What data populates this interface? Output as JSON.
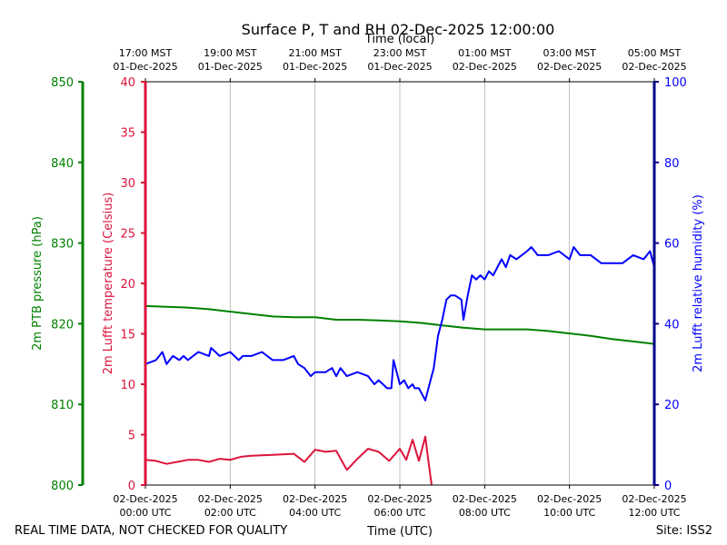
{
  "chart_data": {
    "type": "line",
    "title": "Surface P, T and RH 02-Dec-2025 12:00:00",
    "top_axis_title": "Time (local)",
    "bottom_axis_title": "Time (UTC)",
    "footer_left": "REAL TIME DATA, NOT CHECKED FOR QUALITY",
    "footer_right": "Site: ISS2",
    "x_range_hours_utc": [
      0,
      12
    ],
    "grid": "vertical lines at bottom ticks",
    "colors": {
      "pressure": "#008000",
      "temperature": "#dc143c",
      "humidity": "#0000ff",
      "rh_axis": "#00008b"
    },
    "bottom_ticks": [
      {
        "hour": 0,
        "line1": "02-Dec-2025",
        "line2": "00:00 UTC"
      },
      {
        "hour": 2,
        "line1": "02-Dec-2025",
        "line2": "02:00 UTC"
      },
      {
        "hour": 4,
        "line1": "02-Dec-2025",
        "line2": "04:00 UTC"
      },
      {
        "hour": 6,
        "line1": "02-Dec-2025",
        "line2": "06:00 UTC"
      },
      {
        "hour": 8,
        "line1": "02-Dec-2025",
        "line2": "08:00 UTC"
      },
      {
        "hour": 10,
        "line1": "02-Dec-2025",
        "line2": "10:00 UTC"
      },
      {
        "hour": 12,
        "line1": "02-Dec-2025",
        "line2": "12:00 UTC"
      }
    ],
    "top_ticks": [
      {
        "hour": 0,
        "line1": "17:00 MST",
        "line2": "01-Dec-2025"
      },
      {
        "hour": 2,
        "line1": "19:00 MST",
        "line2": "01-Dec-2025"
      },
      {
        "hour": 4,
        "line1": "21:00 MST",
        "line2": "01-Dec-2025"
      },
      {
        "hour": 6,
        "line1": "23:00 MST",
        "line2": "01-Dec-2025"
      },
      {
        "hour": 8,
        "line1": "01:00 MST",
        "line2": "02-Dec-2025"
      },
      {
        "hour": 10,
        "line1": "03:00 MST",
        "line2": "02-Dec-2025"
      },
      {
        "hour": 12,
        "line1": "05:00 MST",
        "line2": "02-Dec-2025"
      }
    ],
    "axes": {
      "pressure": {
        "label": "2m PTB pressure (hPa)",
        "ylim": [
          800,
          850
        ],
        "ticks": [
          800,
          810,
          820,
          830,
          840,
          850
        ]
      },
      "temperature": {
        "label": "2m Lufft temperature (Celsius)",
        "ylim": [
          0,
          40
        ],
        "ticks": [
          0,
          5,
          10,
          15,
          20,
          25,
          30,
          35,
          40
        ]
      },
      "humidity": {
        "label": "2m Lufft relative humidity (%)",
        "ylim": [
          0,
          100
        ],
        "ticks": [
          0,
          20,
          40,
          60,
          80,
          100
        ]
      }
    },
    "series": [
      {
        "name": "2m PTB pressure (hPa)",
        "axis": "pressure",
        "x": [
          0,
          0.5,
          1,
          1.5,
          2,
          2.5,
          3,
          3.5,
          4,
          4.5,
          5,
          5.5,
          6,
          6.5,
          7,
          7.5,
          8,
          8.5,
          9,
          9.5,
          10,
          10.5,
          11,
          11.5,
          12
        ],
        "y": [
          822.2,
          822.1,
          822.0,
          821.8,
          821.5,
          821.2,
          820.9,
          820.8,
          820.8,
          820.5,
          820.5,
          820.4,
          820.3,
          820.1,
          819.8,
          819.5,
          819.3,
          819.3,
          819.3,
          819.1,
          818.8,
          818.5,
          818.1,
          817.8,
          817.5
        ]
      },
      {
        "name": "2m Lufft temperature (Celsius)",
        "axis": "temperature",
        "x": [
          0,
          0.25,
          0.5,
          0.75,
          1,
          1.25,
          1.5,
          1.75,
          2,
          2.25,
          2.5,
          3,
          3.5,
          3.75,
          4,
          4.25,
          4.5,
          4.75,
          5,
          5.25,
          5.5,
          5.75,
          6,
          6.15,
          6.3,
          6.45,
          6.6,
          6.7,
          6.75
        ],
        "y": [
          2.5,
          2.4,
          2.1,
          2.3,
          2.5,
          2.5,
          2.3,
          2.6,
          2.5,
          2.8,
          2.9,
          3.0,
          3.1,
          2.3,
          3.5,
          3.3,
          3.4,
          1.5,
          2.6,
          3.6,
          3.3,
          2.4,
          3.6,
          2.5,
          4.5,
          2.4,
          4.8,
          1.5,
          0
        ]
      },
      {
        "name": "2m Lufft relative humidity (%)",
        "axis": "humidity",
        "x": [
          0,
          0.25,
          0.4,
          0.5,
          0.65,
          0.8,
          0.9,
          1,
          1.25,
          1.5,
          1.55,
          1.75,
          2,
          2.2,
          2.3,
          2.5,
          2.75,
          3,
          3.25,
          3.5,
          3.6,
          3.75,
          3.9,
          4,
          4.25,
          4.4,
          4.5,
          4.6,
          4.75,
          5,
          5.25,
          5.4,
          5.5,
          5.7,
          5.8,
          5.85,
          6,
          6.1,
          6.2,
          6.3,
          6.35,
          6.45,
          6.5,
          6.55,
          6.6,
          6.8,
          6.9,
          7,
          7.1,
          7.2,
          7.3,
          7.45,
          7.5,
          7.6,
          7.7,
          7.8,
          7.9,
          8,
          8.1,
          8.2,
          8.4,
          8.5,
          8.6,
          8.75,
          9,
          9.1,
          9.25,
          9.5,
          9.75,
          10,
          10.1,
          10.25,
          10.5,
          10.75,
          11,
          11.25,
          11.5,
          11.75,
          11.9,
          12
        ],
        "y": [
          30,
          31,
          33,
          30,
          32,
          31,
          32,
          31,
          33,
          32,
          34,
          32,
          33,
          31,
          32,
          32,
          33,
          31,
          31,
          32,
          30,
          29,
          27,
          28,
          28,
          29,
          27,
          29,
          27,
          28,
          27,
          25,
          26,
          24,
          24,
          31,
          25,
          26,
          24,
          25,
          24,
          24,
          23,
          22,
          21,
          29,
          37,
          41,
          46,
          47,
          47,
          46,
          41,
          47,
          52,
          51,
          52,
          51,
          53,
          52,
          56,
          54,
          57,
          56,
          58,
          59,
          57,
          57,
          58,
          56,
          59,
          57,
          57,
          55,
          55,
          55,
          57,
          56,
          58,
          54
        ]
      }
    ]
  }
}
